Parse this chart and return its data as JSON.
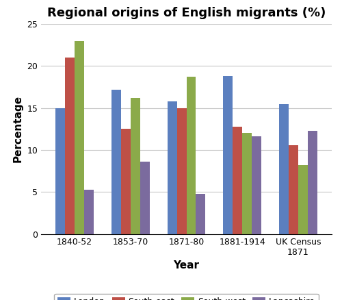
{
  "title": "Regional origins of English migrants (%)",
  "xlabel": "Year",
  "ylabel": "Percentage",
  "categories": [
    "1840-52",
    "1853-70",
    "1871-80",
    "1881-1914",
    "UK Census\n1871"
  ],
  "series": {
    "London": [
      15.0,
      17.2,
      15.8,
      18.8,
      15.5
    ],
    "South-east": [
      21.0,
      12.5,
      15.0,
      12.8,
      10.6
    ],
    "South-west": [
      23.0,
      16.2,
      18.7,
      12.0,
      8.2
    ],
    "Lancashire": [
      5.3,
      8.6,
      4.8,
      11.6,
      12.3
    ]
  },
  "colors": {
    "London": "#5B7FBF",
    "South-east": "#BE5047",
    "South-west": "#8BAA4A",
    "Lancashire": "#7B6B9E"
  },
  "ylim": [
    0,
    25
  ],
  "yticks": [
    0,
    5,
    10,
    15,
    20,
    25
  ],
  "bar_width": 0.17,
  "background_color": "#ffffff",
  "grid_color": "#c8c8c8",
  "title_fontsize": 13,
  "axis_label_fontsize": 11,
  "tick_fontsize": 9,
  "legend_fontsize": 9
}
